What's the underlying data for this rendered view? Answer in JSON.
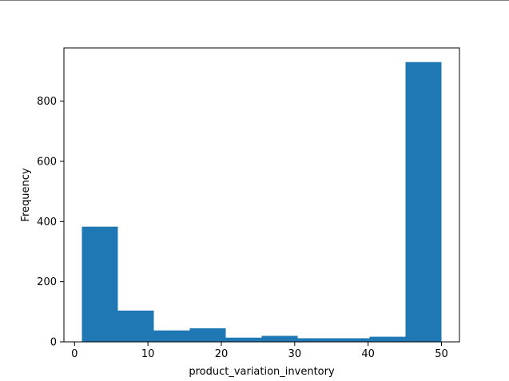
{
  "chart_data": {
    "type": "bar",
    "subtype": "histogram",
    "title": "",
    "xlabel": "product_variation_inventory",
    "ylabel": "Frequency",
    "xlim": [
      -1.45,
      52.45
    ],
    "ylim": [
      0,
      977
    ],
    "bin_edges": [
      1,
      5.9,
      10.8,
      15.7,
      20.6,
      25.5,
      30.4,
      35.3,
      40.2,
      45.1,
      50
    ],
    "values": [
      383,
      104,
      38,
      45,
      14,
      20,
      12,
      12,
      17,
      930
    ],
    "xticks": [
      0,
      10,
      20,
      30,
      40,
      50
    ],
    "yticks": [
      0,
      200,
      400,
      600,
      800
    ],
    "bar_color": "#1f77b4",
    "grid": false,
    "legend": "none"
  }
}
